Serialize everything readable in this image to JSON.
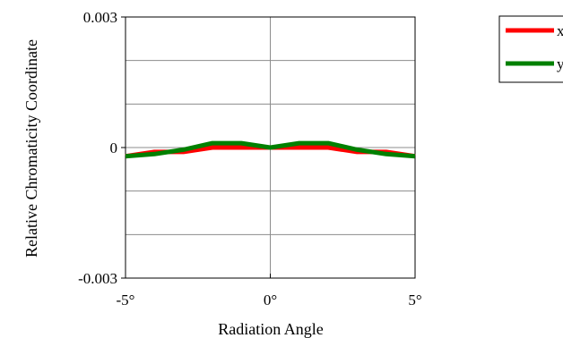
{
  "chart_data": {
    "type": "line",
    "title": "",
    "xlabel": "Radiation Angle",
    "ylabel": "Relative Chromaticity Coordinate",
    "xlim": [
      -5,
      5
    ],
    "ylim": [
      -0.003,
      0.003
    ],
    "x_ticks": [
      {
        "value": -5,
        "label": "-5°"
      },
      {
        "value": 0,
        "label": "0°"
      },
      {
        "value": 5,
        "label": "5°"
      }
    ],
    "y_ticks": [
      {
        "value": 0.003,
        "label": "0.003"
      },
      {
        "value": 0,
        "label": "0"
      },
      {
        "value": -0.003,
        "label": "-0.003"
      }
    ],
    "grid": true,
    "legend_position": "top-right",
    "x": [
      -5,
      -4,
      -3,
      -2,
      -1,
      0,
      1,
      2,
      3,
      4,
      5
    ],
    "series": [
      {
        "name": "x",
        "color": "#ff0000",
        "values": [
          -0.0002,
          -0.0001,
          -0.0001,
          0.0,
          0.0,
          0.0,
          0.0,
          0.0,
          -0.0001,
          -0.0001,
          -0.0002
        ]
      },
      {
        "name": "y",
        "color": "#008000",
        "values": [
          -0.0002,
          -0.00015,
          -5e-05,
          0.0001,
          0.0001,
          0.0,
          0.0001,
          0.0001,
          -5e-05,
          -0.00015,
          -0.0002
        ]
      }
    ]
  }
}
